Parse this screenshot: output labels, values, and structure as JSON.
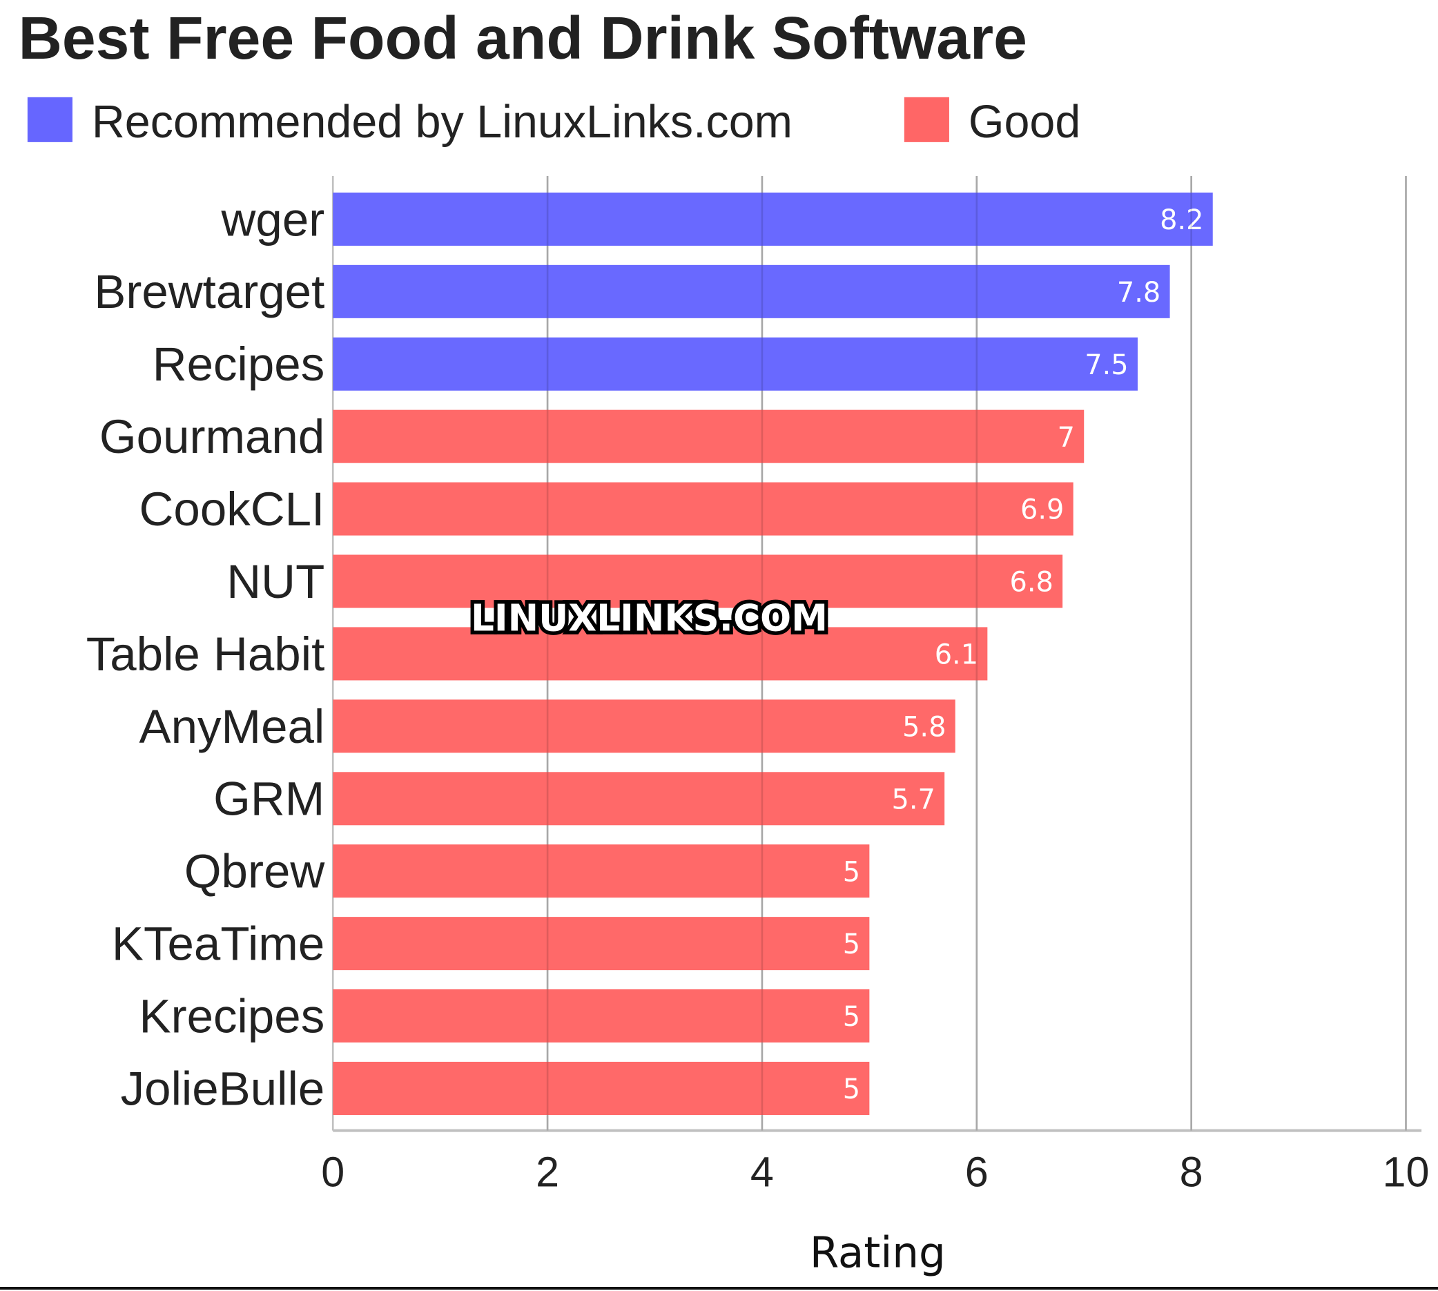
{
  "chart_data": {
    "type": "bar",
    "orientation": "horizontal",
    "title": "Best Free Food and Drink Software",
    "xlabel": "Rating",
    "ylabel": "",
    "xlim": [
      0,
      10
    ],
    "xticks": [
      "0",
      "2",
      "4",
      "6",
      "8",
      "10"
    ],
    "grid": true,
    "legend_placement": "top-left",
    "legend": [
      {
        "name": "Recommended by LinuxLinks.com",
        "color": "#6666ff"
      },
      {
        "name": "Good",
        "color": "#ff6666"
      }
    ],
    "categories": [
      "wger",
      "Brewtarget",
      "Recipes",
      "Gourmand",
      "CookCLI",
      "NUT",
      "Table Habit",
      "AnyMeal",
      "GRM",
      "Qbrew",
      "KTeaTime",
      "Krecipes",
      "JolieBulle"
    ],
    "values": [
      8.2,
      7.8,
      7.5,
      7,
      6.9,
      6.8,
      6.1,
      5.8,
      5.7,
      5,
      5,
      5,
      5
    ],
    "value_labels": [
      "8.2",
      "7.8",
      "7.5",
      "7",
      "6.9",
      "6.8",
      "6.1",
      "5.8",
      "5.7",
      "5",
      "5",
      "5",
      "5"
    ],
    "groups": [
      "Recommended by LinuxLinks.com",
      "Recommended by LinuxLinks.com",
      "Recommended by LinuxLinks.com",
      "Good",
      "Good",
      "Good",
      "Good",
      "Good",
      "Good",
      "Good",
      "Good",
      "Good",
      "Good"
    ]
  },
  "watermark": "LINUXLINKS.COM"
}
